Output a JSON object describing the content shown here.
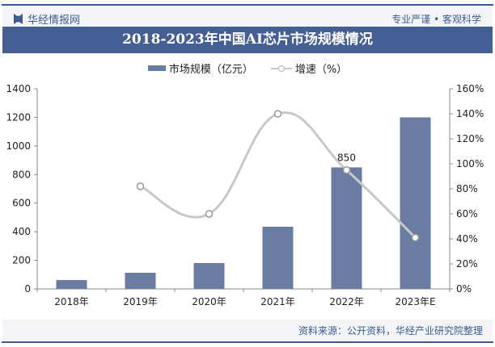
{
  "header": {
    "logo_text": "华经情报网",
    "slogan": "专业严谨 • 客观科学"
  },
  "footer": {
    "source": "资料来源：公开资料，华经产业研究院整理"
  },
  "chart_data": {
    "type": "bar+line",
    "title": "2018-2023年中国AI芯片市场规模情况",
    "categories": [
      "2018年",
      "2019年",
      "2020年",
      "2021年",
      "2022年",
      "2023年E"
    ],
    "series": [
      {
        "name": "市场规模（亿元）",
        "type": "bar",
        "axis": "left",
        "values": [
          62,
          113,
          181,
          435,
          850,
          1200
        ],
        "color": "#6a7ca1"
      },
      {
        "name": "增速（%）",
        "type": "line",
        "axis": "right",
        "values": [
          null,
          82,
          60,
          140,
          95,
          41
        ],
        "color": "#c8c8c8"
      }
    ],
    "data_labels": [
      {
        "category": "2022年",
        "text": "850"
      }
    ],
    "left_axis": {
      "ylim": [
        0,
        1400
      ],
      "ticks": [
        "0",
        "200",
        "400",
        "600",
        "800",
        "1000",
        "1200",
        "1400"
      ]
    },
    "right_axis": {
      "ylim": [
        0,
        160
      ],
      "ticks": [
        "0%",
        "20%",
        "40%",
        "60%",
        "80%",
        "100%",
        "120%",
        "140%",
        "160%"
      ]
    },
    "legend": "top-center"
  }
}
